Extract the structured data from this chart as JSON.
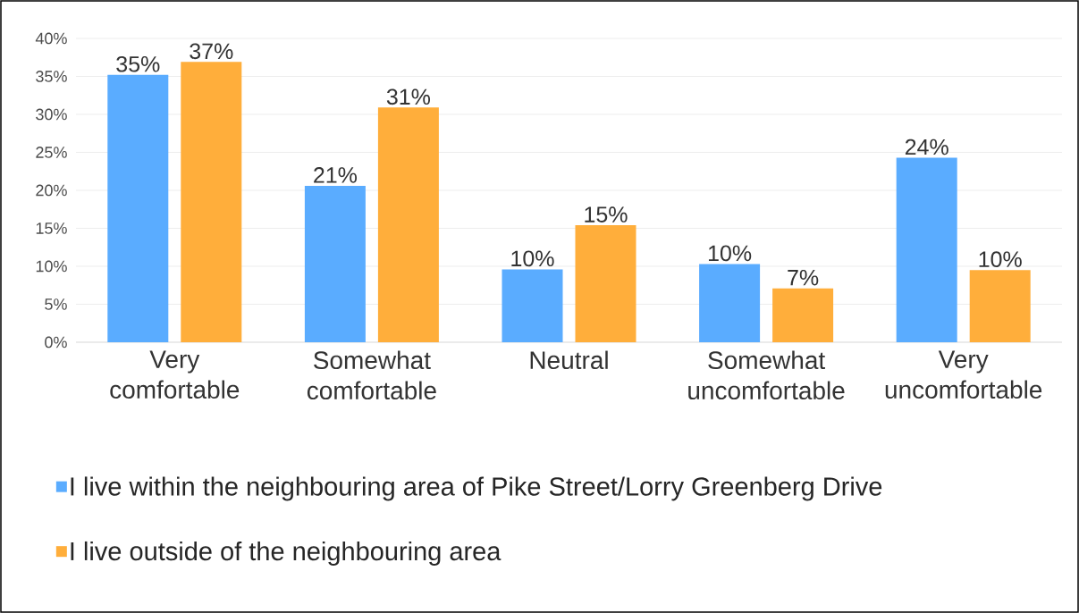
{
  "chart_data": {
    "type": "bar",
    "categories": [
      "Very comfortable",
      "Somewhat comfortable",
      "Neutral",
      "Somewhat uncomfortable",
      "Very uncomfortable"
    ],
    "series": [
      {
        "name": "I live within the neighbouring area of Pike Street/Lorry Greenberg Drive",
        "color": "#5aacff",
        "values": [
          35.2,
          20.6,
          9.6,
          10.3,
          24.3
        ],
        "value_labels": [
          "35%",
          "21%",
          "10%",
          "10%",
          "24%"
        ]
      },
      {
        "name": "I live outside of the neighbouring area",
        "color": "#ffae3b",
        "values": [
          36.9,
          30.9,
          15.4,
          7.1,
          9.5
        ],
        "value_labels": [
          "37%",
          "31%",
          "15%",
          "7%",
          "10%"
        ]
      }
    ],
    "ylim": [
      0,
      40
    ],
    "yticks": [
      {
        "value": 0,
        "label": "0%"
      },
      {
        "value": 5,
        "label": "5%"
      },
      {
        "value": 10,
        "label": "10%"
      },
      {
        "value": 15,
        "label": "15%"
      },
      {
        "value": 20,
        "label": "20%"
      },
      {
        "value": 25,
        "label": "25%"
      },
      {
        "value": 30,
        "label": "30%"
      },
      {
        "value": 35,
        "label": "35%"
      },
      {
        "value": 40,
        "label": "40%"
      }
    ],
    "grid": "y",
    "legend": "bottom"
  }
}
